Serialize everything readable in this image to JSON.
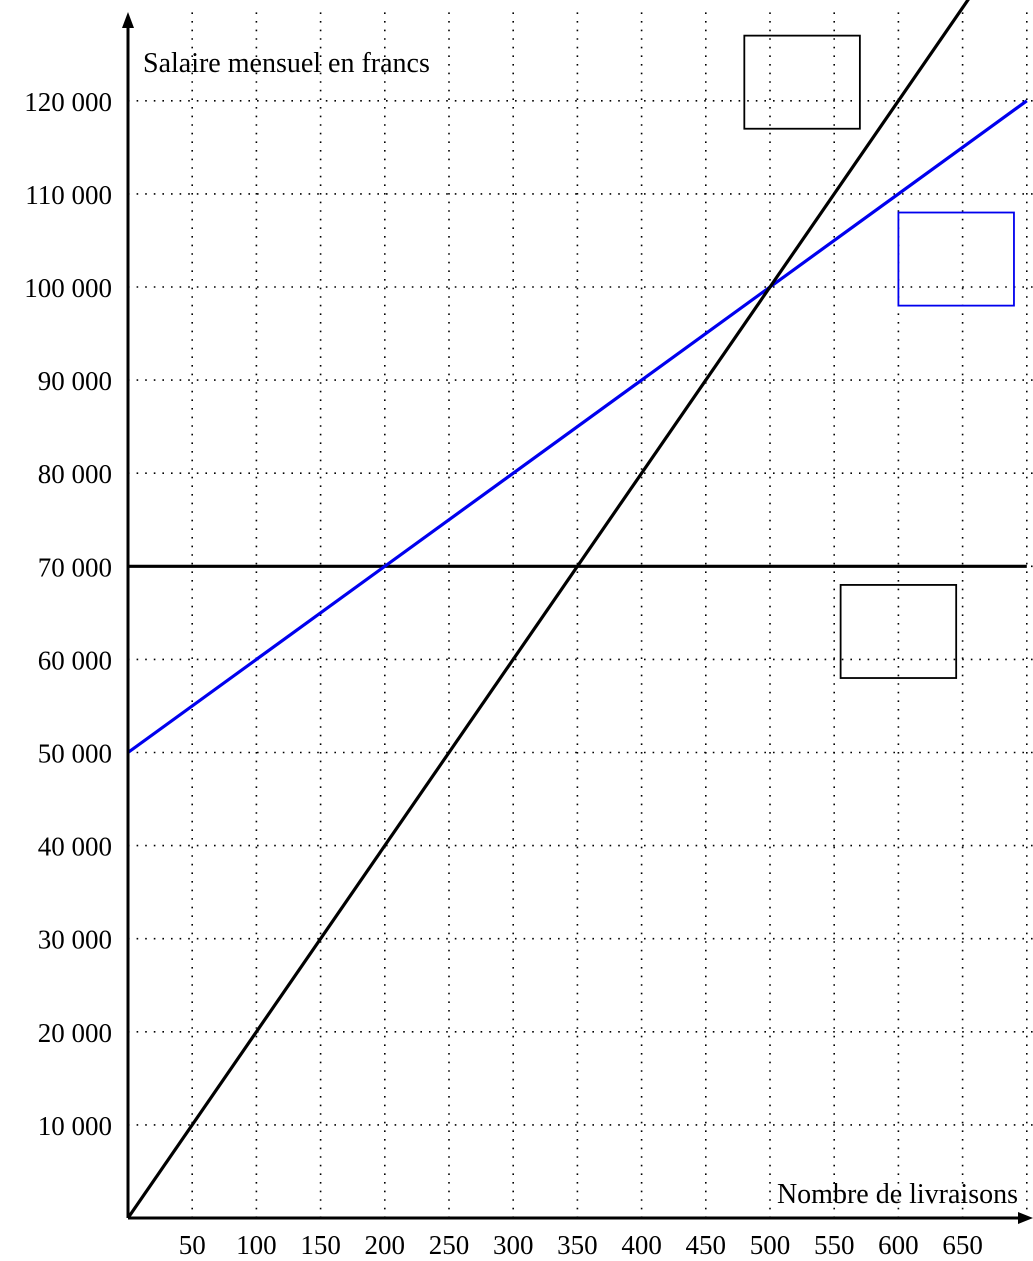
{
  "chart_data": {
    "type": "line",
    "xlabel": "Nombre de livraisons",
    "ylabel": "Salaire mensuel en francs",
    "xlim": [
      0,
      700
    ],
    "ylim": [
      0,
      130000
    ],
    "x_ticks": [
      50,
      100,
      150,
      200,
      250,
      300,
      350,
      400,
      450,
      500,
      550,
      600,
      650
    ],
    "y_ticks": [
      10000,
      20000,
      30000,
      40000,
      50000,
      60000,
      70000,
      80000,
      90000,
      100000,
      110000,
      120000
    ],
    "x_tick_labels": [
      "50",
      "100",
      "150",
      "200",
      "250",
      "300",
      "350",
      "400",
      "450",
      "500",
      "550",
      "600",
      "650"
    ],
    "y_tick_labels": [
      "10 000",
      "20 000",
      "30 000",
      "40 000",
      "50 000",
      "60 000",
      "70 000",
      "80 000",
      "90 000",
      "100 000",
      "110 000",
      "120 000"
    ],
    "grid": "dotted",
    "series": [
      {
        "color": "#000000",
        "x": [
          0,
          700
        ],
        "y": [
          70000,
          70000
        ]
      },
      {
        "color": "#0000ee",
        "x": [
          0,
          700
        ],
        "y": [
          50000,
          120000
        ]
      },
      {
        "color": "#000000",
        "x": [
          0,
          700
        ],
        "y": [
          0,
          140000
        ]
      }
    ],
    "label_boxes": [
      {
        "color": "#000000",
        "x": [
          480,
          570
        ],
        "y": [
          117000,
          127000
        ]
      },
      {
        "color": "#0000ee",
        "x": [
          600,
          690
        ],
        "y": [
          98000,
          108000
        ]
      },
      {
        "color": "#000000",
        "x": [
          555,
          645
        ],
        "y": [
          58000,
          68000
        ]
      }
    ]
  }
}
